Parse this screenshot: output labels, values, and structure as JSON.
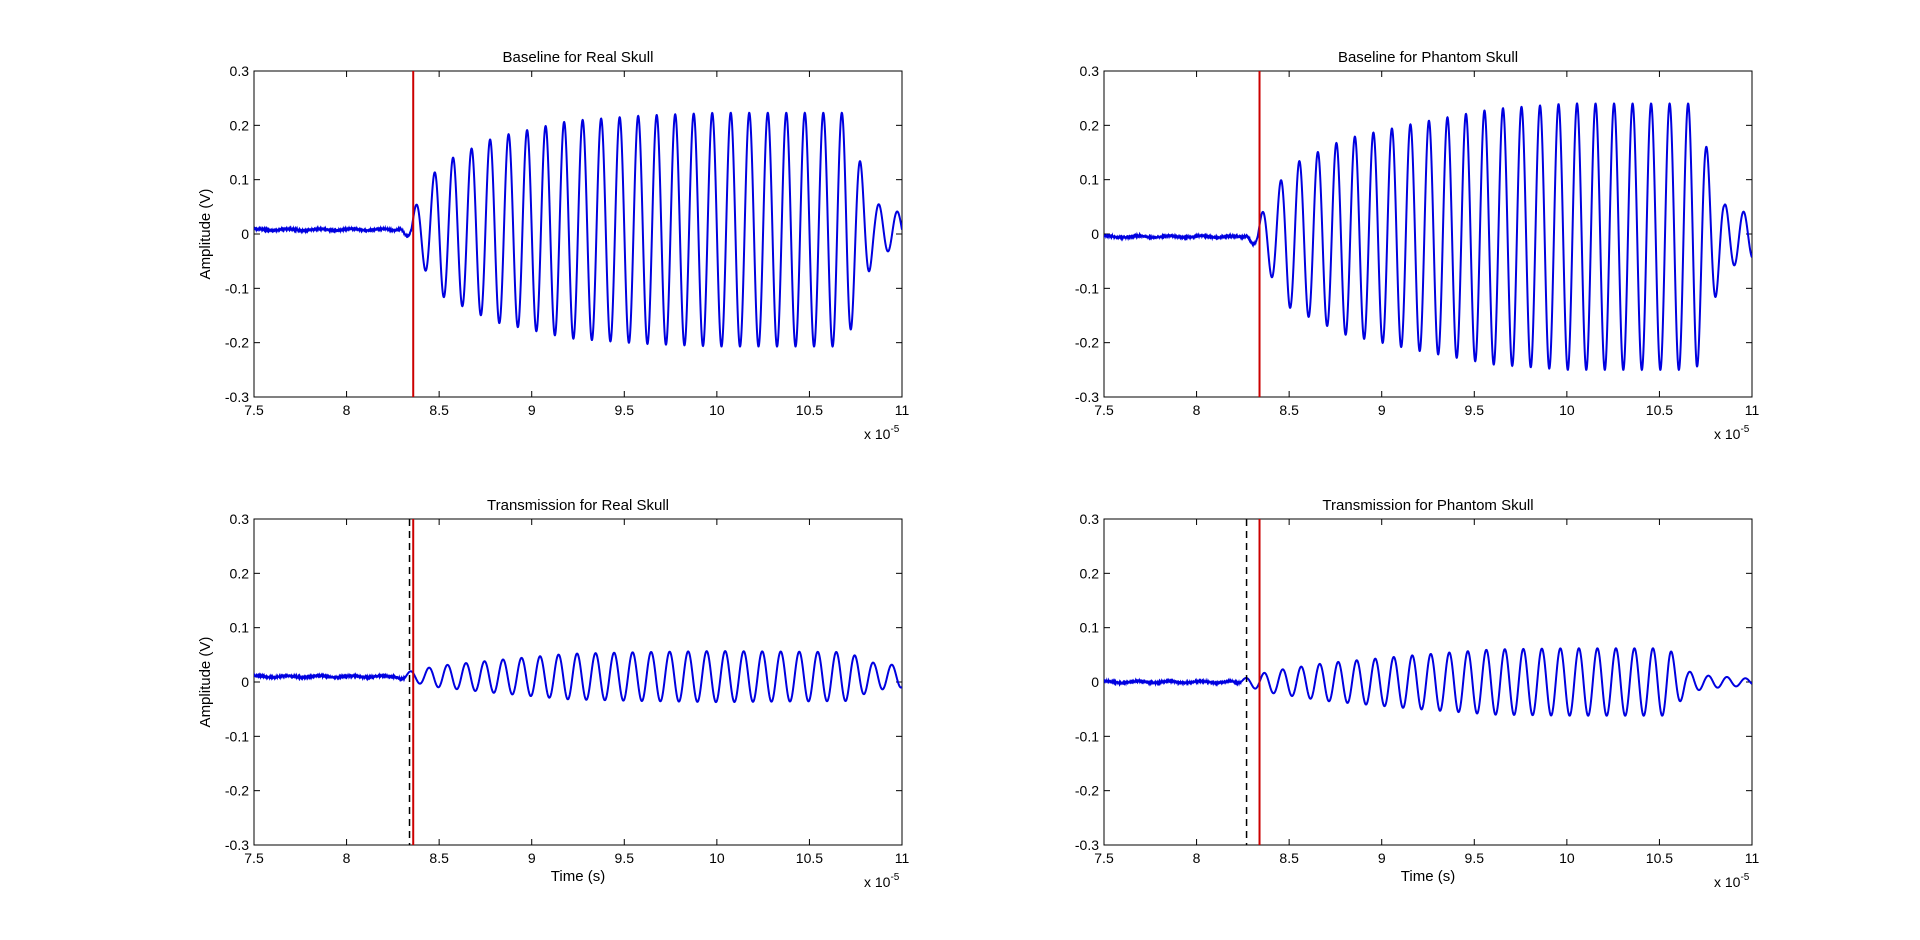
{
  "chart_data": [
    {
      "type": "line",
      "title": "Baseline for Real Skull",
      "xlabel": "",
      "ylabel": "Amplitude (V)",
      "xlim": [
        7.5,
        11
      ],
      "ylim": [
        -0.3,
        0.3
      ],
      "x_scale_factor_label": "x 10",
      "x_scale_exponent": "-5",
      "xticks": [
        "7.5",
        "8",
        "8.5",
        "9",
        "9.5",
        "10",
        "10.5",
        "11"
      ],
      "yticks": [
        "-0.3",
        "-0.2",
        "-0.1",
        "0",
        "0.1",
        "0.2",
        "0.3"
      ],
      "signal": {
        "color": "#0000e0",
        "baseline": 0.008,
        "onset": 8.35,
        "frequency_cycles_per_unit": 10,
        "envelope": [
          [
            8.35,
            0.03
          ],
          [
            8.5,
            0.12
          ],
          [
            8.8,
            0.17
          ],
          [
            9.2,
            0.2
          ],
          [
            9.6,
            0.21
          ],
          [
            10.0,
            0.215
          ],
          [
            10.7,
            0.215
          ],
          [
            10.75,
            0.15
          ],
          [
            10.85,
            0.05
          ],
          [
            11.0,
            0.03
          ]
        ]
      },
      "markers": [
        {
          "type": "solid",
          "color": "#cc0000",
          "x": 8.36
        }
      ]
    },
    {
      "type": "line",
      "title": "Baseline for Phantom Skull",
      "xlabel": "",
      "ylabel": "",
      "xlim": [
        7.5,
        11
      ],
      "ylim": [
        -0.3,
        0.3
      ],
      "x_scale_factor_label": "x 10",
      "x_scale_exponent": "-5",
      "xticks": [
        "7.5",
        "8",
        "8.5",
        "9",
        "9.5",
        "10",
        "10.5",
        "11"
      ],
      "yticks": [
        "-0.3",
        "-0.2",
        "-0.1",
        "0",
        "0.1",
        "0.2",
        "0.3"
      ],
      "signal": {
        "color": "#0000e0",
        "baseline": -0.005,
        "onset": 8.33,
        "frequency_cycles_per_unit": 10,
        "envelope": [
          [
            8.33,
            0.03
          ],
          [
            8.5,
            0.13
          ],
          [
            8.8,
            0.18
          ],
          [
            9.2,
            0.21
          ],
          [
            9.6,
            0.235
          ],
          [
            10.0,
            0.245
          ],
          [
            10.7,
            0.245
          ],
          [
            10.75,
            0.17
          ],
          [
            10.85,
            0.06
          ],
          [
            11.0,
            0.04
          ]
        ]
      },
      "markers": [
        {
          "type": "solid",
          "color": "#cc0000",
          "x": 8.34
        }
      ]
    },
    {
      "type": "line",
      "title": "Transmission for Real Skull",
      "xlabel": "Time (s)",
      "ylabel": "Amplitude (V)",
      "xlim": [
        7.5,
        11
      ],
      "ylim": [
        -0.3,
        0.3
      ],
      "x_scale_factor_label": "x 10",
      "x_scale_exponent": "-5",
      "xticks": [
        "7.5",
        "8",
        "8.5",
        "9",
        "9.5",
        "10",
        "10.5",
        "11"
      ],
      "yticks": [
        "-0.3",
        "-0.2",
        "-0.1",
        "0",
        "0.1",
        "0.2",
        "0.3"
      ],
      "signal": {
        "color": "#0000e0",
        "baseline": 0.01,
        "onset": 8.32,
        "frequency_cycles_per_unit": 10,
        "envelope": [
          [
            8.32,
            0.008
          ],
          [
            8.5,
            0.02
          ],
          [
            8.8,
            0.03
          ],
          [
            9.2,
            0.042
          ],
          [
            9.6,
            0.045
          ],
          [
            10.0,
            0.047
          ],
          [
            10.7,
            0.045
          ],
          [
            10.85,
            0.025
          ],
          [
            11.0,
            0.02
          ]
        ]
      },
      "markers": [
        {
          "type": "dashed",
          "color": "#000000",
          "x": 8.34
        },
        {
          "type": "solid",
          "color": "#cc0000",
          "x": 8.36
        }
      ]
    },
    {
      "type": "line",
      "title": "Transmission for Phantom Skull",
      "xlabel": "Time (s)",
      "ylabel": "",
      "xlim": [
        7.5,
        11
      ],
      "ylim": [
        -0.3,
        0.3
      ],
      "x_scale_factor_label": "x 10",
      "x_scale_exponent": "-5",
      "xticks": [
        "7.5",
        "8",
        "8.5",
        "9",
        "9.5",
        "10",
        "10.5",
        "11"
      ],
      "yticks": [
        "-0.3",
        "-0.2",
        "-0.1",
        "0",
        "0.1",
        "0.2",
        "0.3"
      ],
      "signal": {
        "color": "#0000e0",
        "baseline": 0.0,
        "onset": 8.24,
        "frequency_cycles_per_unit": 10,
        "envelope": [
          [
            8.24,
            0.005
          ],
          [
            8.4,
            0.02
          ],
          [
            8.7,
            0.035
          ],
          [
            9.2,
            0.05
          ],
          [
            9.6,
            0.06
          ],
          [
            10.0,
            0.062
          ],
          [
            10.55,
            0.062
          ],
          [
            10.65,
            0.02
          ],
          [
            10.75,
            0.012
          ],
          [
            11.0,
            0.006
          ]
        ]
      },
      "markers": [
        {
          "type": "dashed",
          "color": "#000000",
          "x": 8.27
        },
        {
          "type": "solid",
          "color": "#cc0000",
          "x": 8.34
        }
      ]
    }
  ]
}
